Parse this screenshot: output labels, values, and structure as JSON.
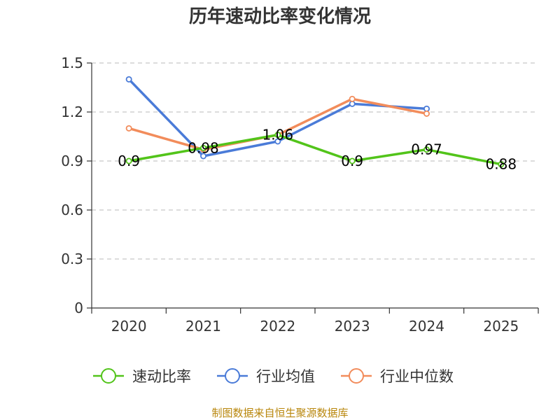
{
  "chart_data": {
    "type": "line",
    "title": "历年速动比率变化情况",
    "categories": [
      "2020",
      "2021",
      "2022",
      "2023",
      "2024",
      "2025"
    ],
    "ylim": [
      0,
      1.5
    ],
    "yticks": [
      "0",
      "0.3",
      "0.6",
      "0.9",
      "1.2",
      "1.5"
    ],
    "grid": true,
    "legend_position": "bottom",
    "series": [
      {
        "name": "速动比率",
        "color": "#52c41a",
        "values": [
          0.9,
          0.98,
          1.06,
          0.9,
          0.97,
          0.88
        ],
        "labels": [
          "0.9",
          "0.98",
          "1.06",
          "0.9",
          "0.97",
          "0.88"
        ]
      },
      {
        "name": "行业均值",
        "color": "#4a7bd8",
        "values": [
          1.4,
          0.93,
          1.02,
          1.25,
          1.22,
          null
        ]
      },
      {
        "name": "行业中位数",
        "color": "#f28c5b",
        "values": [
          1.1,
          0.97,
          1.06,
          1.28,
          1.19,
          null
        ]
      }
    ]
  },
  "footer": {
    "source": "制图数据来自恒生聚源数据库"
  }
}
